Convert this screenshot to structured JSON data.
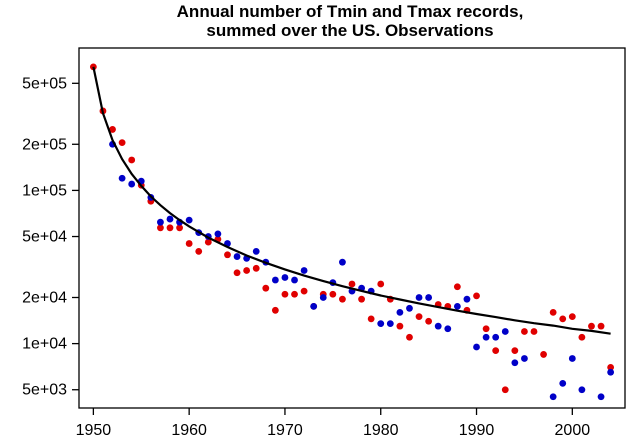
{
  "chart_data": {
    "type": "scatter",
    "title_lines": [
      "Annual number of Tmin and Tmax records,",
      "summed over the US. Observations"
    ],
    "xlabel": "",
    "ylabel": "",
    "xlim": [
      1948.5,
      2005.5
    ],
    "ylim": [
      3800,
      850000
    ],
    "y_scale": "log",
    "x_ticks": [
      1950,
      1960,
      1970,
      1980,
      1990,
      2000
    ],
    "y_ticks": [
      {
        "value": 500000,
        "label": "5e+05"
      },
      {
        "value": 200000,
        "label": "2e+05"
      },
      {
        "value": 100000,
        "label": "1e+05"
      },
      {
        "value": 50000,
        "label": "5e+04"
      },
      {
        "value": 20000,
        "label": "2e+04"
      },
      {
        "value": 10000,
        "label": "1e+04"
      },
      {
        "value": 5000,
        "label": "5e+03"
      }
    ],
    "grid": false,
    "legend": "none",
    "series": [
      {
        "color": "#e00000",
        "points": [
          [
            1950,
            640000
          ],
          [
            1951,
            330000
          ],
          [
            1952,
            250000
          ],
          [
            1953,
            205000
          ],
          [
            1954,
            158000
          ],
          [
            1955,
            108000
          ],
          [
            1956,
            85000
          ],
          [
            1957,
            57000
          ],
          [
            1958,
            57000
          ],
          [
            1959,
            57000
          ],
          [
            1960,
            45000
          ],
          [
            1961,
            40000
          ],
          [
            1962,
            46000
          ],
          [
            1963,
            48000
          ],
          [
            1964,
            38000
          ],
          [
            1965,
            29000
          ],
          [
            1966,
            30000
          ],
          [
            1967,
            31000
          ],
          [
            1968,
            23000
          ],
          [
            1969,
            16500
          ],
          [
            1970,
            21000
          ],
          [
            1971,
            21000
          ],
          [
            1972,
            22000
          ],
          [
            1973,
            17500
          ],
          [
            1974,
            21000
          ],
          [
            1975,
            21000
          ],
          [
            1976,
            19500
          ],
          [
            1977,
            24500
          ],
          [
            1978,
            19500
          ],
          [
            1979,
            14500
          ],
          [
            1980,
            24500
          ],
          [
            1981,
            19500
          ],
          [
            1982,
            13000
          ],
          [
            1983,
            11000
          ],
          [
            1984,
            15000
          ],
          [
            1985,
            14000
          ],
          [
            1986,
            18000
          ],
          [
            1987,
            17500
          ],
          [
            1988,
            23500
          ],
          [
            1989,
            16500
          ],
          [
            1990,
            20500
          ],
          [
            1991,
            12500
          ],
          [
            1992,
            9000
          ],
          [
            1993,
            5000
          ],
          [
            1994,
            9000
          ],
          [
            1995,
            12000
          ],
          [
            1996,
            12000
          ],
          [
            1997,
            8500
          ],
          [
            1998,
            16000
          ],
          [
            1999,
            14500
          ],
          [
            2000,
            15000
          ],
          [
            2001,
            11000
          ],
          [
            2002,
            13000
          ],
          [
            2003,
            13000
          ],
          [
            2004,
            7000
          ]
        ]
      },
      {
        "color": "#0000c8",
        "points": [
          [
            1952,
            200000
          ],
          [
            1953,
            120000
          ],
          [
            1954,
            110000
          ],
          [
            1955,
            115000
          ],
          [
            1956,
            90000
          ],
          [
            1957,
            62000
          ],
          [
            1958,
            65000
          ],
          [
            1959,
            62000
          ],
          [
            1960,
            64000
          ],
          [
            1961,
            53000
          ],
          [
            1962,
            50000
          ],
          [
            1963,
            52000
          ],
          [
            1964,
            45000
          ],
          [
            1965,
            37000
          ],
          [
            1966,
            36000
          ],
          [
            1967,
            40000
          ],
          [
            1968,
            34000
          ],
          [
            1969,
            26000
          ],
          [
            1970,
            27000
          ],
          [
            1971,
            26000
          ],
          [
            1972,
            30000
          ],
          [
            1973,
            17500
          ],
          [
            1974,
            20000
          ],
          [
            1975,
            25000
          ],
          [
            1976,
            34000
          ],
          [
            1977,
            22000
          ],
          [
            1978,
            23000
          ],
          [
            1979,
            22000
          ],
          [
            1980,
            13500
          ],
          [
            1981,
            13500
          ],
          [
            1982,
            16000
          ],
          [
            1983,
            17000
          ],
          [
            1984,
            20000
          ],
          [
            1985,
            20000
          ],
          [
            1986,
            13000
          ],
          [
            1987,
            12500
          ],
          [
            1988,
            17500
          ],
          [
            1989,
            19500
          ],
          [
            1990,
            9500
          ],
          [
            1991,
            11000
          ],
          [
            1992,
            11000
          ],
          [
            1993,
            12000
          ],
          [
            1994,
            7500
          ],
          [
            1995,
            8000
          ],
          [
            1998,
            4500
          ],
          [
            1999,
            5500
          ],
          [
            2000,
            8000
          ],
          [
            2001,
            5000
          ],
          [
            2003,
            4500
          ],
          [
            2004,
            6500
          ]
        ]
      }
    ],
    "fit_curve": {
      "color": "#000000",
      "points": [
        [
          1950,
          640000
        ],
        [
          1951,
          320000
        ],
        [
          1952,
          213000
        ],
        [
          1953,
          160000
        ],
        [
          1954,
          128000
        ],
        [
          1955,
          107000
        ],
        [
          1956,
          91400
        ],
        [
          1957,
          80000
        ],
        [
          1958,
          71100
        ],
        [
          1959,
          64000
        ],
        [
          1960,
          58200
        ],
        [
          1962,
          49200
        ],
        [
          1964,
          42700
        ],
        [
          1966,
          37600
        ],
        [
          1968,
          33700
        ],
        [
          1970,
          30500
        ],
        [
          1972,
          27800
        ],
        [
          1974,
          25600
        ],
        [
          1976,
          23700
        ],
        [
          1978,
          22100
        ],
        [
          1980,
          20600
        ],
        [
          1982,
          19400
        ],
        [
          1984,
          18300
        ],
        [
          1986,
          17300
        ],
        [
          1988,
          16400
        ],
        [
          1990,
          15600
        ],
        [
          1992,
          14900
        ],
        [
          1994,
          14200
        ],
        [
          1996,
          13600
        ],
        [
          1998,
          13100
        ],
        [
          2000,
          12500
        ],
        [
          2002,
          12100
        ],
        [
          2004,
          11600
        ]
      ]
    }
  }
}
